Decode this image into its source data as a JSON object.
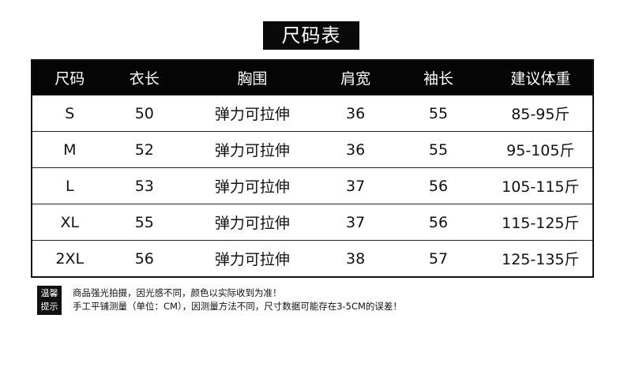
{
  "title": "尺码表",
  "table": {
    "headers": [
      "尺码",
      "衣长",
      "胸围",
      "肩宽",
      "袖长",
      "建议体重"
    ],
    "rows": [
      [
        "S",
        "50",
        "弹力可拉伸",
        "36",
        "55",
        "85-95斤"
      ],
      [
        "M",
        "52",
        "弹力可拉伸",
        "36",
        "55",
        "95-105斤"
      ],
      [
        "L",
        "53",
        "弹力可拉伸",
        "37",
        "56",
        "105-115斤"
      ],
      [
        "XL",
        "55",
        "弹力可拉伸",
        "37",
        "56",
        "115-125斤"
      ],
      [
        "2XL",
        "56",
        "弹力可拉伸",
        "38",
        "57",
        "125-135斤"
      ]
    ]
  },
  "note": {
    "badge_line1": "温馨",
    "badge_line2": "提示",
    "lines": [
      "商品强光拍摄，因光感不同，颜色以实际收到为准！",
      "手工平铺测量（单位：CM），因测量方法不同，尺寸数据可能存在3-5CM的误差！"
    ]
  }
}
